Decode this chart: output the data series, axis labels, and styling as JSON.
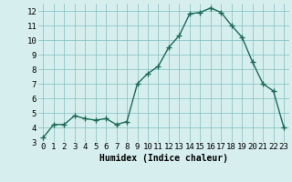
{
  "x": [
    0,
    1,
    2,
    3,
    4,
    5,
    6,
    7,
    8,
    9,
    10,
    11,
    12,
    13,
    14,
    15,
    16,
    17,
    18,
    19,
    20,
    21,
    22,
    23
  ],
  "y": [
    3.3,
    4.2,
    4.2,
    4.8,
    4.6,
    4.5,
    4.6,
    4.2,
    4.4,
    7.0,
    7.7,
    8.2,
    9.5,
    10.3,
    11.8,
    11.9,
    12.2,
    11.9,
    11.0,
    10.2,
    8.5,
    7.0,
    6.5,
    4.0
  ],
  "xlabel": "Humidex (Indice chaleur)",
  "bg_color": "#d6eeee",
  "grid_color": "#7fbfbf",
  "line_color": "#1a6b5a",
  "marker_color": "#1a6b5a",
  "xlim": [
    -0.5,
    23.5
  ],
  "ylim": [
    3,
    12.5
  ],
  "yticks": [
    3,
    4,
    5,
    6,
    7,
    8,
    9,
    10,
    11,
    12
  ],
  "xticks": [
    0,
    1,
    2,
    3,
    4,
    5,
    6,
    7,
    8,
    9,
    10,
    11,
    12,
    13,
    14,
    15,
    16,
    17,
    18,
    19,
    20,
    21,
    22,
    23
  ],
  "xlabel_fontsize": 7,
  "tick_fontsize": 6.5,
  "line_width": 1.0,
  "marker_size": 4
}
